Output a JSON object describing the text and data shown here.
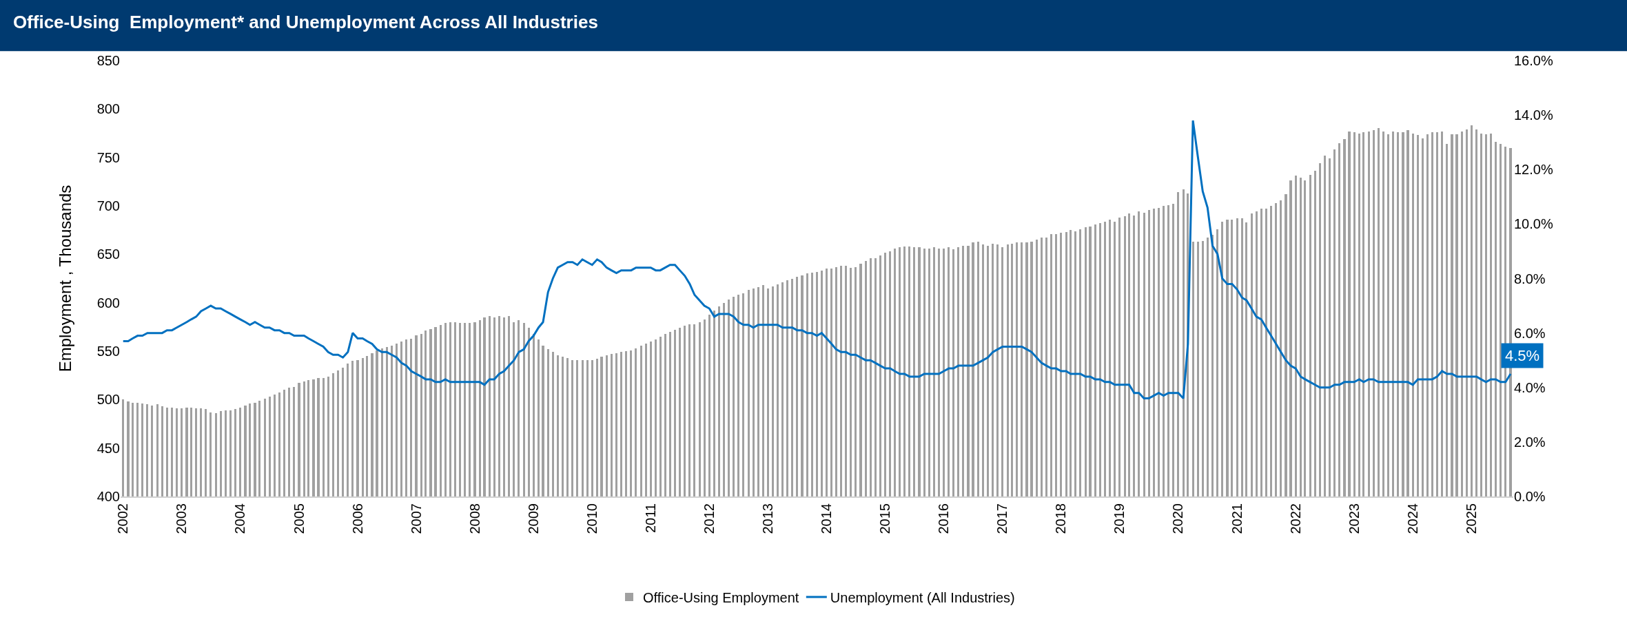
{
  "chart_data": {
    "type": "bar",
    "title": "Office-Using  Employment* and Unemployment Across All Industries",
    "ylabel": "Employment , Thousands",
    "x": [
      "2002-01",
      "2002-02",
      "2002-03",
      "2002-04",
      "2002-05",
      "2002-06",
      "2002-07",
      "2002-08",
      "2002-09",
      "2002-10",
      "2002-11",
      "2002-12",
      "2003-01",
      "2003-02",
      "2003-03",
      "2003-04",
      "2003-05",
      "2003-06",
      "2003-07",
      "2003-08",
      "2003-09",
      "2003-10",
      "2003-11",
      "2003-12",
      "2004-01",
      "2004-02",
      "2004-03",
      "2004-04",
      "2004-05",
      "2004-06",
      "2004-07",
      "2004-08",
      "2004-09",
      "2004-10",
      "2004-11",
      "2004-12",
      "2005-01",
      "2005-02",
      "2005-03",
      "2005-04",
      "2005-05",
      "2005-06",
      "2005-07",
      "2005-08",
      "2005-09",
      "2005-10",
      "2005-11",
      "2005-12",
      "2006-01",
      "2006-02",
      "2006-03",
      "2006-04",
      "2006-05",
      "2006-06",
      "2006-07",
      "2006-08",
      "2006-09",
      "2006-10",
      "2006-11",
      "2006-12",
      "2007-01",
      "2007-02",
      "2007-03",
      "2007-04",
      "2007-05",
      "2007-06",
      "2007-07",
      "2007-08",
      "2007-09",
      "2007-10",
      "2007-11",
      "2007-12",
      "2008-01",
      "2008-02",
      "2008-03",
      "2008-04",
      "2008-05",
      "2008-06",
      "2008-07",
      "2008-08",
      "2008-09",
      "2008-10",
      "2008-11",
      "2008-12",
      "2009-01",
      "2009-02",
      "2009-03",
      "2009-04",
      "2009-05",
      "2009-06",
      "2009-07",
      "2009-08",
      "2009-09",
      "2009-10",
      "2009-11",
      "2009-12",
      "2010-01",
      "2010-02",
      "2010-03",
      "2010-04",
      "2010-05",
      "2010-06",
      "2010-07",
      "2010-08",
      "2010-09",
      "2010-10",
      "2010-11",
      "2010-12",
      "2011-01",
      "2011-02",
      "2011-03",
      "2011-04",
      "2011-05",
      "2011-06",
      "2011-07",
      "2011-08",
      "2011-09",
      "2011-10",
      "2011-11",
      "2011-12",
      "2012-01",
      "2012-02",
      "2012-03",
      "2012-04",
      "2012-05",
      "2012-06",
      "2012-07",
      "2012-08",
      "2012-09",
      "2012-10",
      "2012-11",
      "2012-12",
      "2013-01",
      "2013-02",
      "2013-03",
      "2013-04",
      "2013-05",
      "2013-06",
      "2013-07",
      "2013-08",
      "2013-09",
      "2013-10",
      "2013-11",
      "2013-12",
      "2014-01",
      "2014-02",
      "2014-03",
      "2014-04",
      "2014-05",
      "2014-06",
      "2014-07",
      "2014-08",
      "2014-09",
      "2014-10",
      "2014-11",
      "2014-12",
      "2015-01",
      "2015-02",
      "2015-03",
      "2015-04",
      "2015-05",
      "2015-06",
      "2015-07",
      "2015-08",
      "2015-09",
      "2015-10",
      "2015-11",
      "2015-12",
      "2016-01",
      "2016-02",
      "2016-03",
      "2016-04",
      "2016-05",
      "2016-06",
      "2016-07",
      "2016-08",
      "2016-09",
      "2016-10",
      "2016-11",
      "2016-12",
      "2017-01",
      "2017-02",
      "2017-03",
      "2017-04",
      "2017-05",
      "2017-06",
      "2017-07",
      "2017-08",
      "2017-09",
      "2017-10",
      "2017-11",
      "2017-12",
      "2018-01",
      "2018-02",
      "2018-03",
      "2018-04",
      "2018-05",
      "2018-06",
      "2018-07",
      "2018-08",
      "2018-09",
      "2018-10",
      "2018-11",
      "2018-12",
      "2019-01",
      "2019-02",
      "2019-03",
      "2019-04",
      "2019-05",
      "2019-06",
      "2019-07",
      "2019-08",
      "2019-09",
      "2019-10",
      "2019-11",
      "2019-12",
      "2020-01",
      "2020-02",
      "2020-03",
      "2020-04",
      "2020-05",
      "2020-06",
      "2020-07",
      "2020-08",
      "2020-09",
      "2020-10",
      "2020-11",
      "2020-12",
      "2021-01",
      "2021-02",
      "2021-03",
      "2021-04",
      "2021-05",
      "2021-06",
      "2021-07",
      "2021-08",
      "2021-09",
      "2021-10",
      "2021-11",
      "2021-12",
      "2022-01",
      "2022-02",
      "2022-03",
      "2022-04",
      "2022-05",
      "2022-06",
      "2022-07",
      "2022-08",
      "2022-09",
      "2022-10",
      "2022-11",
      "2022-12",
      "2023-01",
      "2023-02",
      "2023-03",
      "2023-04",
      "2023-05",
      "2023-06",
      "2023-07",
      "2023-08",
      "2023-09",
      "2023-10",
      "2023-11",
      "2023-12",
      "2024-01",
      "2024-02",
      "2024-03",
      "2024-04",
      "2024-05",
      "2024-06",
      "2024-07",
      "2024-08",
      "2024-09",
      "2024-10",
      "2024-11",
      "2024-12",
      "2025-01",
      "2025-02",
      "2025-03",
      "2025-04",
      "2025-05",
      "2025-06",
      "2025-07",
      "2025-08",
      "2025-09"
    ],
    "series": [
      {
        "name": "Office-Using Employment",
        "color": "#a0a0a0",
        "values": [
          500,
          498,
          497,
          497,
          496,
          495,
          494,
          495,
          493,
          492,
          492,
          491,
          491,
          492,
          492,
          491,
          491,
          490,
          487,
          486,
          488,
          489,
          489,
          490,
          492,
          494,
          496,
          497,
          499,
          501,
          503,
          505,
          507,
          510,
          512,
          513,
          517,
          519,
          520,
          521,
          522,
          522,
          524,
          527,
          530,
          533,
          537,
          540,
          541,
          543,
          545,
          548,
          551,
          553,
          554,
          556,
          558,
          560,
          562,
          563,
          566,
          568,
          571,
          573,
          575,
          577,
          579,
          580,
          580,
          579,
          579,
          579,
          580,
          582,
          585,
          586,
          585,
          586,
          585,
          586,
          580,
          582,
          579,
          574,
          568,
          562,
          556,
          552,
          549,
          546,
          544,
          543,
          541,
          541,
          541,
          541,
          541,
          542,
          544,
          546,
          547,
          548,
          549,
          550,
          551,
          553,
          556,
          558,
          560,
          562,
          565,
          568,
          570,
          572,
          574,
          576,
          578,
          578,
          580,
          583,
          588,
          592,
          596,
          600,
          603,
          606,
          608,
          610,
          613,
          615,
          616,
          618,
          615,
          617,
          619,
          621,
          623,
          625,
          627,
          628,
          630,
          631,
          632,
          633,
          635,
          635,
          637,
          638,
          638,
          636,
          637,
          640,
          643,
          646,
          646,
          649,
          652,
          653,
          656,
          657,
          658,
          658,
          657,
          657,
          656,
          656,
          657,
          656,
          656,
          657,
          655,
          657,
          659,
          659,
          662,
          663,
          660,
          659,
          661,
          660,
          657,
          660,
          661,
          662,
          662,
          662,
          663,
          665,
          667,
          667,
          671,
          671,
          672,
          673,
          675,
          674,
          676,
          678,
          679,
          681,
          682,
          684,
          686,
          684,
          688,
          689,
          692,
          690,
          694,
          693,
          696,
          697,
          698,
          700,
          701,
          702,
          714,
          717,
          713,
          663,
          663,
          664,
          667,
          670,
          676,
          684,
          686,
          686,
          687,
          687,
          683,
          692,
          694,
          697,
          697,
          700,
          703,
          706,
          712,
          726,
          731,
          729,
          726,
          732,
          736,
          744,
          752,
          749,
          758,
          765,
          769,
          777,
          776,
          775,
          776,
          777,
          778,
          780,
          777,
          774,
          777,
          776,
          776,
          778,
          775,
          773,
          770,
          774,
          776,
          776,
          777,
          764,
          774,
          774,
          777,
          779,
          783,
          779,
          775,
          774,
          775,
          766,
          764,
          761,
          760
        ]
      },
      {
        "name": "Unemployment (All Industries)",
        "type": "line",
        "axis": "y2",
        "color": "#0070c0",
        "values": [
          5.7,
          5.7,
          5.8,
          5.9,
          5.9,
          6.0,
          6.0,
          6.0,
          6.0,
          6.1,
          6.1,
          6.2,
          6.3,
          6.4,
          6.5,
          6.6,
          6.8,
          6.9,
          7.0,
          6.9,
          6.9,
          6.8,
          6.7,
          6.6,
          6.5,
          6.4,
          6.3,
          6.4,
          6.3,
          6.2,
          6.2,
          6.1,
          6.1,
          6.0,
          6.0,
          5.9,
          5.9,
          5.9,
          5.8,
          5.7,
          5.6,
          5.5,
          5.3,
          5.2,
          5.2,
          5.1,
          5.3,
          6.0,
          5.8,
          5.8,
          5.7,
          5.6,
          5.4,
          5.3,
          5.3,
          5.2,
          5.1,
          4.9,
          4.8,
          4.6,
          4.5,
          4.4,
          4.3,
          4.3,
          4.2,
          4.2,
          4.3,
          4.2,
          4.2,
          4.2,
          4.2,
          4.2,
          4.2,
          4.2,
          4.1,
          4.3,
          4.3,
          4.5,
          4.6,
          4.8,
          5.0,
          5.3,
          5.4,
          5.7,
          5.9,
          6.2,
          6.4,
          7.5,
          8.0,
          8.4,
          8.5,
          8.6,
          8.6,
          8.5,
          8.7,
          8.6,
          8.5,
          8.7,
          8.6,
          8.4,
          8.3,
          8.2,
          8.3,
          8.3,
          8.3,
          8.4,
          8.4,
          8.4,
          8.4,
          8.3,
          8.3,
          8.4,
          8.5,
          8.5,
          8.3,
          8.1,
          7.8,
          7.4,
          7.2,
          7.0,
          6.9,
          6.6,
          6.7,
          6.7,
          6.7,
          6.6,
          6.4,
          6.3,
          6.3,
          6.2,
          6.3,
          6.3,
          6.3,
          6.3,
          6.3,
          6.2,
          6.2,
          6.2,
          6.1,
          6.1,
          6.0,
          6.0,
          5.9,
          6.0,
          5.8,
          5.6,
          5.4,
          5.3,
          5.3,
          5.2,
          5.2,
          5.1,
          5.0,
          5.0,
          4.9,
          4.8,
          4.7,
          4.7,
          4.6,
          4.5,
          4.5,
          4.4,
          4.4,
          4.4,
          4.5,
          4.5,
          4.5,
          4.5,
          4.6,
          4.7,
          4.7,
          4.8,
          4.8,
          4.8,
          4.8,
          4.9,
          5.0,
          5.1,
          5.3,
          5.4,
          5.5,
          5.5,
          5.5,
          5.5,
          5.5,
          5.4,
          5.3,
          5.1,
          4.9,
          4.8,
          4.7,
          4.7,
          4.6,
          4.6,
          4.5,
          4.5,
          4.5,
          4.4,
          4.4,
          4.3,
          4.3,
          4.2,
          4.2,
          4.1,
          4.1,
          4.1,
          4.1,
          3.8,
          3.8,
          3.6,
          3.6,
          3.7,
          3.8,
          3.7,
          3.8,
          3.8,
          3.8,
          3.6,
          5.6,
          13.8,
          12.5,
          11.2,
          10.6,
          9.2,
          8.9,
          8.0,
          7.8,
          7.8,
          7.6,
          7.3,
          7.2,
          6.9,
          6.6,
          6.5,
          6.2,
          5.9,
          5.6,
          5.3,
          5.0,
          4.8,
          4.7,
          4.4,
          4.3,
          4.2,
          4.1,
          4.0,
          4.0,
          4.0,
          4.1,
          4.1,
          4.2,
          4.2,
          4.2,
          4.3,
          4.2,
          4.3,
          4.3,
          4.2,
          4.2,
          4.2,
          4.2,
          4.2,
          4.2,
          4.2,
          4.1,
          4.3,
          4.3,
          4.3,
          4.3,
          4.4,
          4.6,
          4.5,
          4.5,
          4.4,
          4.4,
          4.4,
          4.4,
          4.4,
          4.3,
          4.2,
          4.3,
          4.3,
          4.2,
          4.2,
          4.5
        ],
        "value_labels": [
          null,
          null,
          null,
          null,
          null,
          null,
          null,
          null,
          null,
          null,
          null,
          null,
          null,
          null,
          null,
          null,
          null,
          null,
          null,
          null,
          null,
          null,
          null,
          null,
          null,
          null,
          null,
          null,
          null,
          null,
          null,
          null,
          null,
          null,
          null,
          null,
          null,
          null,
          null,
          null,
          null,
          null,
          null,
          null,
          null,
          null,
          null,
          null,
          null,
          null,
          null,
          null,
          null,
          null,
          null,
          null,
          null,
          null,
          null,
          null,
          null,
          null,
          null,
          null,
          null,
          null,
          null,
          null,
          null,
          null,
          null,
          null,
          null,
          null,
          null,
          null,
          null,
          null,
          null,
          null,
          null,
          null,
          null,
          null,
          null,
          null,
          null,
          null,
          null,
          null,
          null,
          null,
          null,
          null,
          null,
          null,
          null,
          null,
          null,
          null,
          null,
          null,
          null,
          null,
          null,
          null,
          null,
          null,
          null,
          null,
          null,
          null,
          null,
          null,
          null,
          null,
          null,
          null,
          null,
          null,
          null,
          null,
          null,
          null,
          null,
          null,
          null,
          null,
          null,
          null,
          null,
          null,
          null,
          null,
          null,
          null,
          null,
          null,
          null,
          null,
          null,
          null,
          null,
          null,
          null,
          null,
          null,
          null,
          null,
          null,
          null,
          null,
          null,
          null,
          null,
          null,
          null,
          null,
          null,
          null,
          null,
          null,
          null,
          null,
          null,
          null,
          null,
          null,
          null,
          null,
          null,
          null,
          null,
          null,
          null,
          null,
          null,
          null,
          null,
          null,
          null,
          null,
          null,
          null,
          null,
          null,
          null,
          null,
          null,
          null,
          null,
          null,
          null,
          null,
          null,
          null,
          null,
          null,
          null,
          null,
          null,
          null,
          null,
          null,
          null,
          null,
          null,
          null,
          null,
          null,
          null,
          null,
          null,
          null,
          null,
          null,
          null,
          null,
          null,
          null,
          null,
          null,
          null,
          null,
          null,
          null,
          null,
          null,
          null,
          null,
          null,
          null,
          null,
          null,
          null,
          null,
          null,
          null,
          null,
          null,
          null,
          null,
          null,
          null,
          null,
          null,
          null,
          null,
          null,
          null,
          null,
          null,
          null,
          null,
          null,
          null,
          null,
          null,
          null,
          null,
          null,
          null,
          null,
          null,
          null,
          null,
          null,
          null,
          null,
          null,
          null,
          null,
          null,
          null,
          null,
          null,
          null,
          null,
          null,
          null,
          null,
          null,
          null,
          null,
          "4.5%"
        ]
      }
    ],
    "xlim": [
      "2001-12-16",
      "2025-09-18"
    ],
    "xticks": [
      "2002",
      "2003",
      "2004",
      "2005",
      "2006",
      "2007",
      "2008",
      "2009",
      "2010",
      "2011",
      "2012",
      "2013",
      "2014",
      "2015",
      "2016",
      "2017",
      "2018",
      "2019",
      "2020",
      "2021",
      "2022",
      "2023",
      "2024",
      "2025"
    ],
    "ylim": [
      400,
      850
    ],
    "yticks": [
      400,
      450,
      500,
      550,
      600,
      650,
      700,
      750,
      800,
      850
    ],
    "y2lim": [
      0,
      16
    ],
    "y2ticks": [
      {
        "value": 0,
        "label": "0.0%"
      },
      {
        "value": 2,
        "label": "2.0%"
      },
      {
        "value": 4,
        "label": "4.0%"
      },
      {
        "value": 6,
        "label": "6.0%"
      },
      {
        "value": 8,
        "label": "8.0%"
      },
      {
        "value": 10,
        "label": "10.0%"
      },
      {
        "value": 12,
        "label": "12.0%"
      },
      {
        "value": 14,
        "label": "14.0%"
      },
      {
        "value": 16,
        "label": "16.0%"
      }
    ],
    "legend": "bottom"
  }
}
